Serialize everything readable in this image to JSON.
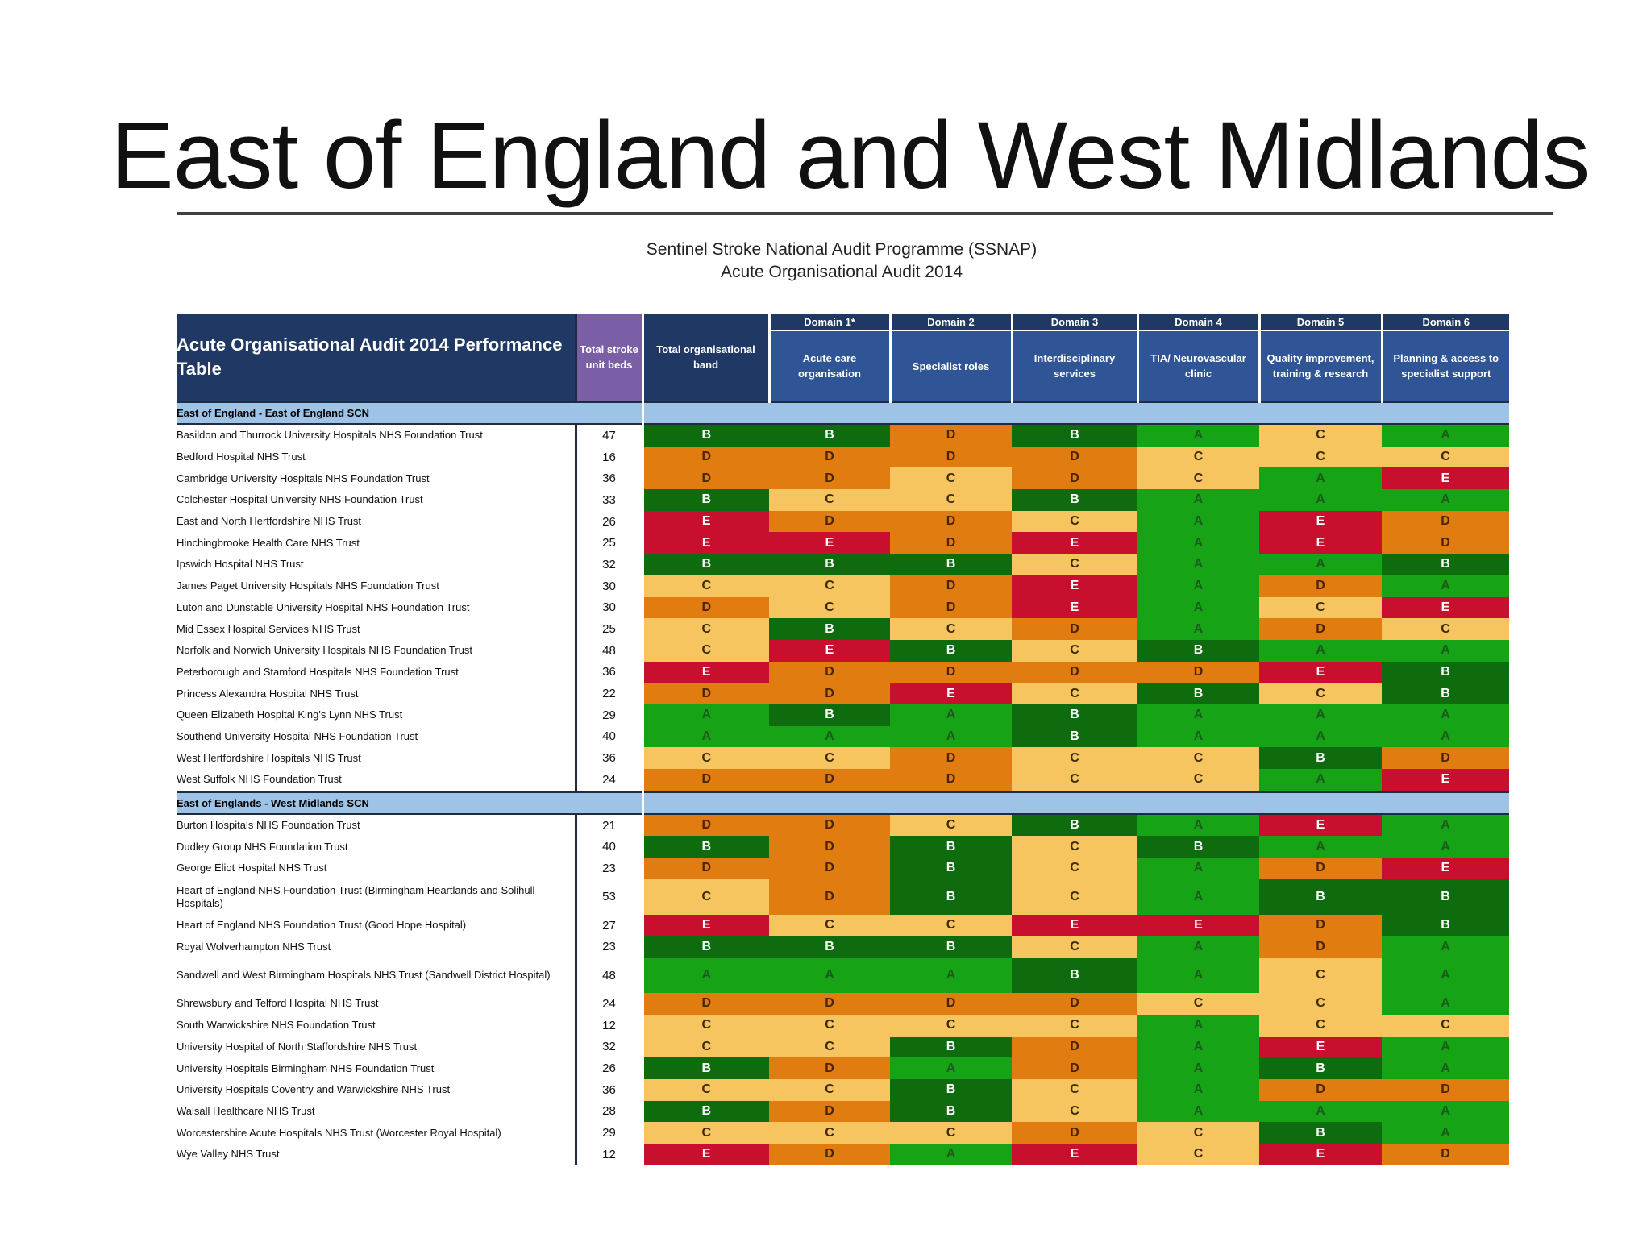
{
  "slide_title": "East of England and West Midlands",
  "subtitle": {
    "line1": "Sentinel Stroke National Audit Programme (SSNAP)",
    "line2": "Acute Organisational Audit 2014"
  },
  "table": {
    "title": "Acute Organisational Audit 2014 Performance Table",
    "col_beds": "Total stroke unit beds",
    "col_band": "Total organisational band",
    "domains": [
      {
        "name": "Domain 1*",
        "label": "Acute care organisation"
      },
      {
        "name": "Domain 2",
        "label": "Specialist roles"
      },
      {
        "name": "Domain 3",
        "label": "Interdisciplinary services"
      },
      {
        "name": "Domain 4",
        "label": "TIA/ Neurovascular clinic"
      },
      {
        "name": "Domain 5",
        "label": "Quality improvement, training & research"
      },
      {
        "name": "Domain 6",
        "label": "Planning & access to specialist support"
      }
    ],
    "sections": [
      {
        "label": "East of England - East of England SCN",
        "rows": [
          {
            "name": "Basildon and Thurrock University Hospitals NHS Foundation Trust",
            "beds": "47",
            "band": "B",
            "grades": [
              "B",
              "D",
              "B",
              "A",
              "C",
              "A"
            ]
          },
          {
            "name": "Bedford Hospital NHS Trust",
            "beds": "16",
            "band": "D",
            "grades": [
              "D",
              "D",
              "D",
              "C",
              "C",
              "C"
            ]
          },
          {
            "name": "Cambridge University Hospitals NHS Foundation Trust",
            "beds": "36",
            "band": "D",
            "grades": [
              "D",
              "C",
              "D",
              "C",
              "A",
              "E"
            ]
          },
          {
            "name": "Colchester Hospital University NHS Foundation Trust",
            "beds": "33",
            "band": "B",
            "grades": [
              "C",
              "C",
              "B",
              "A",
              "A",
              "A"
            ]
          },
          {
            "name": "East and North Hertfordshire NHS Trust",
            "beds": "26",
            "band": "E",
            "grades": [
              "D",
              "D",
              "C",
              "A",
              "E",
              "D"
            ]
          },
          {
            "name": "Hinchingbrooke Health Care NHS Trust",
            "beds": "25",
            "band": "E",
            "grades": [
              "E",
              "D",
              "E",
              "A",
              "E",
              "D"
            ]
          },
          {
            "name": "Ipswich Hospital NHS Trust",
            "beds": "32",
            "band": "B",
            "grades": [
              "B",
              "B",
              "C",
              "A",
              "A",
              "B"
            ]
          },
          {
            "name": "James Paget University Hospitals NHS Foundation Trust",
            "beds": "30",
            "band": "C",
            "grades": [
              "C",
              "D",
              "E",
              "A",
              "D",
              "A"
            ]
          },
          {
            "name": "Luton and Dunstable University Hospital NHS Foundation Trust",
            "beds": "30",
            "band": "D",
            "grades": [
              "C",
              "D",
              "E",
              "A",
              "C",
              "E"
            ]
          },
          {
            "name": "Mid Essex Hospital Services NHS Trust",
            "beds": "25",
            "band": "C",
            "grades": [
              "B",
              "C",
              "D",
              "A",
              "D",
              "C"
            ]
          },
          {
            "name": "Norfolk and Norwich University Hospitals NHS Foundation Trust",
            "beds": "48",
            "band": "C",
            "grades": [
              "E",
              "B",
              "C",
              "B",
              "A",
              "A"
            ]
          },
          {
            "name": "Peterborough and Stamford Hospitals NHS Foundation Trust",
            "beds": "36",
            "band": "E",
            "grades": [
              "D",
              "D",
              "D",
              "D",
              "E",
              "B"
            ]
          },
          {
            "name": "Princess Alexandra Hospital NHS Trust",
            "beds": "22",
            "band": "D",
            "grades": [
              "D",
              "E",
              "C",
              "B",
              "C",
              "B"
            ]
          },
          {
            "name": "Queen Elizabeth Hospital King's Lynn NHS Trust",
            "beds": "29",
            "band": "A",
            "grades": [
              "B",
              "A",
              "B",
              "A",
              "A",
              "A"
            ]
          },
          {
            "name": "Southend University Hospital NHS Foundation Trust",
            "beds": "40",
            "band": "A",
            "grades": [
              "A",
              "A",
              "B",
              "A",
              "A",
              "A"
            ]
          },
          {
            "name": "West Hertfordshire Hospitals NHS Trust",
            "beds": "36",
            "band": "C",
            "grades": [
              "C",
              "D",
              "C",
              "C",
              "B",
              "D"
            ]
          },
          {
            "name": "West Suffolk NHS Foundation Trust",
            "beds": "24",
            "band": "D",
            "grades": [
              "D",
              "D",
              "C",
              "C",
              "A",
              "E"
            ]
          }
        ]
      },
      {
        "label": "East of Englands - West Midlands SCN",
        "rows": [
          {
            "name": "Burton Hospitals NHS Foundation Trust",
            "beds": "21",
            "band": "D",
            "grades": [
              "D",
              "C",
              "B",
              "A",
              "E",
              "A"
            ]
          },
          {
            "name": "Dudley Group NHS Foundation Trust",
            "beds": "40",
            "band": "B",
            "grades": [
              "D",
              "B",
              "C",
              "B",
              "A",
              "A"
            ]
          },
          {
            "name": "George Eliot Hospital NHS Trust",
            "beds": "23",
            "band": "D",
            "grades": [
              "D",
              "B",
              "C",
              "A",
              "D",
              "E"
            ]
          },
          {
            "name": "Heart of England NHS Foundation Trust (Birmingham Heartlands and Solihull Hospitals)",
            "beds": "53",
            "band": "C",
            "grades": [
              "D",
              "B",
              "C",
              "A",
              "B",
              "B"
            ],
            "tall": true
          },
          {
            "name": "Heart of England NHS Foundation Trust (Good Hope Hospital)",
            "beds": "27",
            "band": "E",
            "grades": [
              "C",
              "C",
              "E",
              "E",
              "D",
              "B"
            ]
          },
          {
            "name": "Royal Wolverhampton NHS Trust",
            "beds": "23",
            "band": "B",
            "grades": [
              "B",
              "B",
              "C",
              "A",
              "D",
              "A"
            ]
          },
          {
            "name": "Sandwell and West Birmingham Hospitals NHS Trust (Sandwell District Hospital)",
            "beds": "48",
            "band": "A",
            "grades": [
              "A",
              "A",
              "B",
              "A",
              "C",
              "A"
            ],
            "tall": true
          },
          {
            "name": "Shrewsbury and Telford Hospital NHS Trust",
            "beds": "24",
            "band": "D",
            "grades": [
              "D",
              "D",
              "D",
              "C",
              "C",
              "A"
            ]
          },
          {
            "name": "South Warwickshire NHS Foundation Trust",
            "beds": "12",
            "band": "C",
            "grades": [
              "C",
              "C",
              "C",
              "A",
              "C",
              "C"
            ]
          },
          {
            "name": "University Hospital of North Staffordshire NHS Trust",
            "beds": "32",
            "band": "C",
            "grades": [
              "C",
              "B",
              "D",
              "A",
              "E",
              "A"
            ]
          },
          {
            "name": "University Hospitals Birmingham NHS Foundation Trust",
            "beds": "26",
            "band": "B",
            "grades": [
              "D",
              "A",
              "D",
              "A",
              "B",
              "A"
            ]
          },
          {
            "name": "University Hospitals Coventry and Warwickshire NHS Trust",
            "beds": "36",
            "band": "C",
            "grades": [
              "C",
              "B",
              "C",
              "A",
              "D",
              "D"
            ]
          },
          {
            "name": "Walsall Healthcare NHS Trust",
            "beds": "28",
            "band": "B",
            "grades": [
              "D",
              "B",
              "C",
              "A",
              "A",
              "A"
            ]
          },
          {
            "name": "Worcestershire Acute Hospitals NHS Trust (Worcester Royal Hospital)",
            "beds": "29",
            "band": "C",
            "grades": [
              "C",
              "C",
              "D",
              "C",
              "B",
              "A"
            ]
          },
          {
            "name": "Wye Valley NHS Trust",
            "beds": "12",
            "band": "E",
            "grades": [
              "D",
              "A",
              "E",
              "C",
              "E",
              "D"
            ]
          }
        ]
      }
    ],
    "grade_colors": {
      "A": "#16a316",
      "B": "#0e6b0e",
      "C": "#f6c55f",
      "D": "#e07c10",
      "E": "#c8102e"
    }
  }
}
